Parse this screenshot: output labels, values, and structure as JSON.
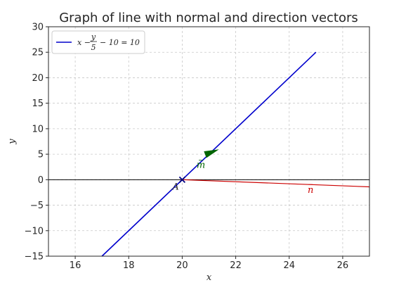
{
  "chart_data": {
    "type": "line",
    "title": "Graph of line with normal and direction vectors",
    "xlabel": "x",
    "ylabel": "y",
    "xlim": [
      15,
      27
    ],
    "ylim": [
      -15,
      30
    ],
    "xticks": [
      16,
      18,
      20,
      22,
      24,
      26
    ],
    "yticks": [
      -15,
      -10,
      -5,
      0,
      5,
      10,
      15,
      20,
      25,
      30
    ],
    "grid": true,
    "legend_position": "top-left",
    "series": [
      {
        "name": "x − y/5 − 10 = 10",
        "color": "#0000cc",
        "x": [
          17,
          25
        ],
        "y": [
          -15,
          25
        ]
      }
    ],
    "horizontal_line": {
      "y": 0,
      "color": "#000000"
    },
    "point": {
      "label": "A",
      "x": 20,
      "y": 0,
      "marker": "x",
      "color": "#000080"
    },
    "vectors": [
      {
        "label": "n",
        "color": "#cc0000",
        "from": [
          20,
          0
        ],
        "to": [
          27,
          -1.4
        ]
      },
      {
        "label": "m",
        "color": "#006400",
        "from": [
          21.0,
          5.2
        ],
        "to": [
          21.3,
          5.8
        ]
      }
    ],
    "legend": {
      "line_color": "#0000cc",
      "parts": {
        "pre": "x −",
        "num": "y",
        "den": "5",
        "post": "− 10 = 10"
      }
    }
  }
}
